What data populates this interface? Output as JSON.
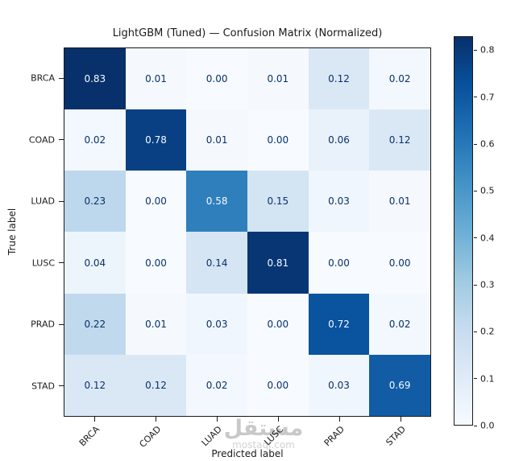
{
  "chart_data": {
    "type": "heatmap",
    "title": "LightGBM (Tuned) — Confusion Matrix (Normalized)",
    "xlabel": "Predicted label",
    "ylabel": "True label",
    "categories": [
      "BRCA",
      "COAD",
      "LUAD",
      "LUSC",
      "PRAD",
      "STAD"
    ],
    "matrix": [
      [
        0.83,
        0.01,
        0.0,
        0.01,
        0.12,
        0.02
      ],
      [
        0.02,
        0.78,
        0.01,
        0.0,
        0.06,
        0.12
      ],
      [
        0.23,
        0.0,
        0.58,
        0.15,
        0.03,
        0.01
      ],
      [
        0.04,
        0.0,
        0.14,
        0.81,
        0.0,
        0.0
      ],
      [
        0.22,
        0.01,
        0.03,
        0.0,
        0.72,
        0.02
      ],
      [
        0.12,
        0.12,
        0.02,
        0.0,
        0.03,
        0.69
      ]
    ],
    "value_decimals": 2,
    "colormap": "Blues",
    "vmin": 0.0,
    "vmax": 0.83,
    "colorbar_ticks": [
      "0.0",
      "0.1",
      "0.2",
      "0.3",
      "0.4",
      "0.5",
      "0.6",
      "0.7",
      "0.8"
    ],
    "legend_position": "right-colorbar",
    "grid": false,
    "colors": {
      "cmap_low": "#f7fbff",
      "cmap_high": "#08306b",
      "cell_text_dark": "#08306b",
      "cell_text_light": "#f7fbff"
    }
  },
  "watermark": {
    "brand": "مستقل",
    "domain": "mostaql.com"
  }
}
